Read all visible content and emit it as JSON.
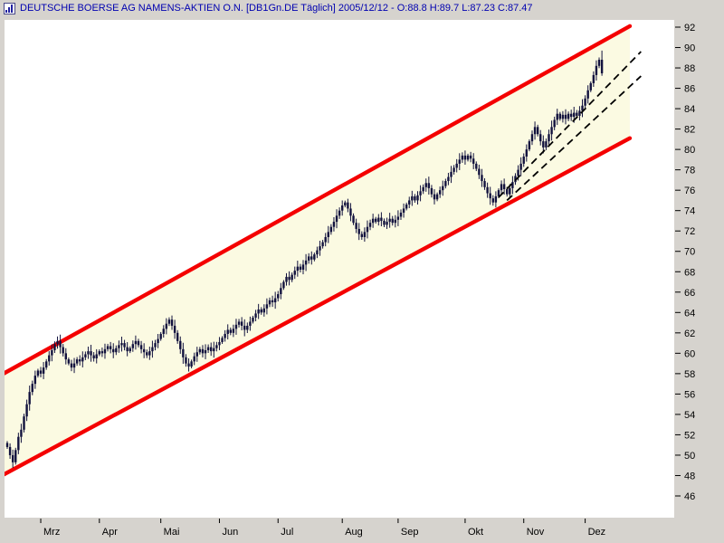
{
  "window": {
    "title": "DEUTSCHE BOERSE AG NAMENS-AKTIEN O.N. [DB1Gn.DE  Täglich] 2005/12/12 - O:88.8 H:89.7 L:87.23 C:87.47",
    "icon": "chart-window-icon"
  },
  "chart_data": {
    "type": "candlestick",
    "instrument": "DEUTSCHE BOERSE AG NAMENS-AKTIEN O.N.",
    "symbol": "DB1Gn.DE",
    "period": "Täglich",
    "quote_date": "2005/12/12",
    "last": {
      "open": 88.8,
      "high": 89.7,
      "low": 87.23,
      "close": 87.47
    },
    "x_axis": {
      "labels": [
        "Mrz",
        "Apr",
        "Mai",
        "Jun",
        "Jul",
        "Aug",
        "Sep",
        "Okt",
        "Nov",
        "Dez"
      ],
      "tick_days": [
        12,
        33,
        55,
        76,
        97,
        120,
        140,
        164,
        185,
        207
      ]
    },
    "y_axis": {
      "ticks": [
        92,
        90,
        88,
        86,
        84,
        82,
        80,
        78,
        76,
        74,
        72,
        70,
        68,
        66,
        64,
        62,
        60,
        58,
        56,
        54,
        52,
        50,
        48,
        46
      ],
      "min": 46,
      "max": 92
    },
    "first_open": 51.2,
    "typical_wick": 0.45,
    "closes": [
      50.8,
      50.0,
      49.3,
      50.5,
      51.8,
      52.5,
      53.8,
      55.0,
      56.2,
      57.0,
      57.8,
      58.3,
      58.0,
      58.6,
      59.2,
      59.8,
      60.3,
      60.9,
      61.2,
      60.6,
      60.0,
      59.4,
      59.0,
      58.6,
      59.0,
      59.4,
      59.2,
      59.6,
      59.9,
      60.2,
      59.8,
      59.5,
      59.9,
      60.2,
      60.0,
      60.4,
      60.7,
      60.4,
      60.1,
      60.5,
      60.8,
      61.0,
      60.6,
      60.2,
      60.5,
      60.9,
      61.2,
      60.8,
      60.4,
      60.1,
      59.8,
      60.2,
      60.6,
      61.0,
      61.4,
      61.9,
      62.4,
      62.9,
      63.3,
      62.7,
      62.0,
      61.2,
      60.4,
      59.6,
      59.0,
      58.7,
      59.2,
      59.7,
      60.1,
      60.4,
      60.0,
      60.3,
      60.6,
      60.2,
      60.5,
      60.8,
      61.1,
      61.5,
      61.9,
      62.3,
      62.0,
      62.4,
      62.8,
      63.1,
      62.7,
      62.3,
      62.7,
      63.1,
      63.5,
      63.9,
      64.3,
      64.0,
      64.4,
      64.8,
      65.2,
      65.0,
      65.4,
      65.8,
      66.4,
      67.0,
      67.5,
      67.2,
      67.7,
      68.1,
      68.5,
      68.2,
      68.7,
      69.1,
      69.5,
      69.2,
      69.7,
      70.1,
      70.5,
      70.9,
      71.4,
      71.9,
      72.4,
      72.9,
      73.5,
      74.0,
      74.5,
      74.8,
      74.2,
      73.5,
      72.8,
      72.2,
      71.7,
      71.4,
      71.9,
      72.4,
      72.8,
      73.2,
      72.9,
      73.3,
      73.0,
      72.6,
      72.9,
      73.2,
      72.8,
      73.1,
      73.4,
      73.8,
      74.2,
      74.6,
      75.0,
      75.4,
      75.0,
      75.5,
      75.9,
      76.3,
      76.7,
      76.2,
      75.6,
      75.1,
      75.6,
      76.0,
      76.4,
      76.9,
      77.3,
      77.8,
      78.2,
      78.6,
      79.0,
      79.4,
      79.0,
      79.4,
      79.1,
      78.6,
      78.1,
      77.5,
      76.9,
      76.3,
      75.7,
      75.2,
      74.8,
      75.4,
      76.0,
      76.6,
      76.1,
      75.6,
      76.2,
      76.8,
      77.4,
      78.0,
      78.6,
      79.3,
      80.0,
      80.8,
      81.5,
      82.2,
      81.5,
      80.8,
      80.2,
      80.8,
      81.5,
      82.2,
      82.9,
      83.5,
      83.0,
      83.4,
      83.0,
      83.5,
      83.2,
      83.6,
      83.3,
      83.8,
      84.3,
      85.0,
      85.8,
      86.5,
      87.3,
      88.2,
      88.8,
      87.47
    ],
    "overlays": {
      "channel": {
        "upper": {
          "d1": -4,
          "p1": 57.6,
          "d2": 223,
          "p2": 92.1
        },
        "lower": {
          "d1": -4,
          "p1": 47.7,
          "d2": 223,
          "p2": 81.1
        }
      },
      "dashed_lines": [
        {
          "d1": 176,
          "p1": 75.3,
          "d2": 227,
          "p2": 89.6
        },
        {
          "d1": 179,
          "p1": 75.0,
          "d2": 227,
          "p2": 87.2
        }
      ]
    },
    "colors": {
      "candle": "#12123e",
      "background": "#ffffff",
      "frame": "#d6d3ce",
      "channel_fill": "#fbfae2",
      "channel_line": "#f40000",
      "dashed": "#000000",
      "axis_text": "#000000",
      "title_text": "#0000b0"
    }
  }
}
